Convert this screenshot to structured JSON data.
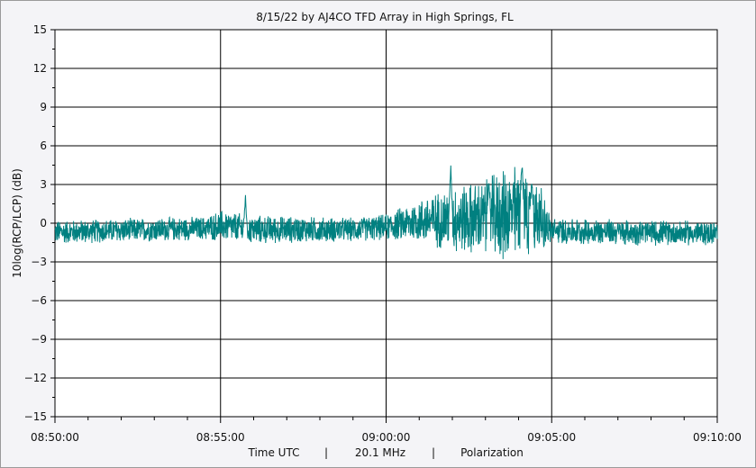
{
  "chart_data": {
    "type": "line",
    "title": "8/15/22  by  AJ4CO TFD Array  in  High Springs, FL",
    "ylabel": "10log(RCP/LCP)  (dB)",
    "footer": [
      "Time UTC",
      "|",
      "20.1 MHz",
      "|",
      "Polarization"
    ],
    "ylim": [
      -15,
      15
    ],
    "yticks": [
      15,
      12,
      9,
      6,
      3,
      0,
      -3,
      -6,
      -9,
      -12,
      -15
    ],
    "yticklabels": [
      "15",
      "12",
      "9",
      "6",
      "3",
      "0",
      "−3",
      "−6",
      "−9",
      "−12",
      "−15"
    ],
    "xlim": [
      "08:50:00",
      "09:10:00"
    ],
    "xticks": [
      "08:50:00",
      "08:55:00",
      "09:00:00",
      "09:05:00",
      "09:10:00"
    ],
    "grid": true,
    "series": [
      {
        "color": "#008080",
        "x_minutes_from": "08:50:00",
        "envelope": [
          {
            "t": 0.0,
            "base": -0.7,
            "amp": 1.0
          },
          {
            "t": 4.5,
            "base": -0.4,
            "amp": 1.0
          },
          {
            "t": 5.0,
            "base": -0.2,
            "amp": 1.3
          },
          {
            "t": 6.0,
            "base": -0.5,
            "amp": 1.2
          },
          {
            "t": 9.0,
            "base": -0.5,
            "amp": 1.0
          },
          {
            "t": 10.0,
            "base": -0.3,
            "amp": 1.1
          },
          {
            "t": 11.0,
            "base": 0.2,
            "amp": 1.8
          },
          {
            "t": 12.0,
            "base": 0.3,
            "amp": 2.8
          },
          {
            "t": 13.0,
            "base": 0.4,
            "amp": 3.2
          },
          {
            "t": 14.0,
            "base": 0.8,
            "amp": 4.2
          },
          {
            "t": 14.6,
            "base": 0.5,
            "amp": 3.0
          },
          {
            "t": 15.0,
            "base": -0.6,
            "amp": 1.1
          },
          {
            "t": 20.0,
            "base": -0.8,
            "amp": 1.0
          }
        ],
        "peaks": [
          {
            "t": 5.75,
            "y": 2.4
          },
          {
            "t": 11.95,
            "y": 4.8
          },
          {
            "t": 13.1,
            "y": 3.5
          },
          {
            "t": 14.1,
            "y": 5.6
          },
          {
            "t": 14.4,
            "y": 3.8
          }
        ]
      }
    ]
  }
}
